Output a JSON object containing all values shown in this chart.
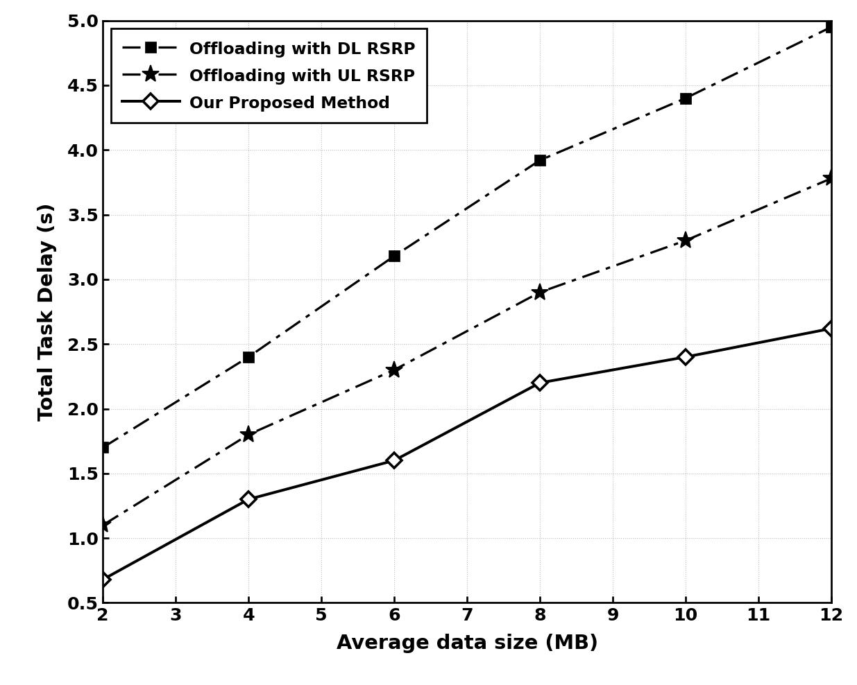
{
  "x": [
    2,
    4,
    6,
    8,
    10,
    12
  ],
  "dl_rsrp": [
    1.7,
    2.4,
    3.18,
    3.92,
    4.4,
    4.95
  ],
  "ul_rsrp": [
    1.1,
    1.8,
    2.3,
    2.9,
    3.3,
    3.78
  ],
  "proposed": [
    0.68,
    1.3,
    1.6,
    2.2,
    2.4,
    2.62
  ],
  "xlabel": "Average data size (MB)",
  "ylabel": "Total Task Delay (s)",
  "xlim": [
    2,
    12
  ],
  "ylim": [
    0.5,
    5.0
  ],
  "xticks": [
    2,
    3,
    4,
    5,
    6,
    7,
    8,
    9,
    10,
    11,
    12
  ],
  "yticks": [
    0.5,
    1.0,
    1.5,
    2.0,
    2.5,
    3.0,
    3.5,
    4.0,
    4.5,
    5.0
  ],
  "legend": [
    "Offloading with DL RSRP",
    "Offloading with UL RSRP",
    "Our Proposed Method"
  ],
  "line_color": "black",
  "background": "white"
}
